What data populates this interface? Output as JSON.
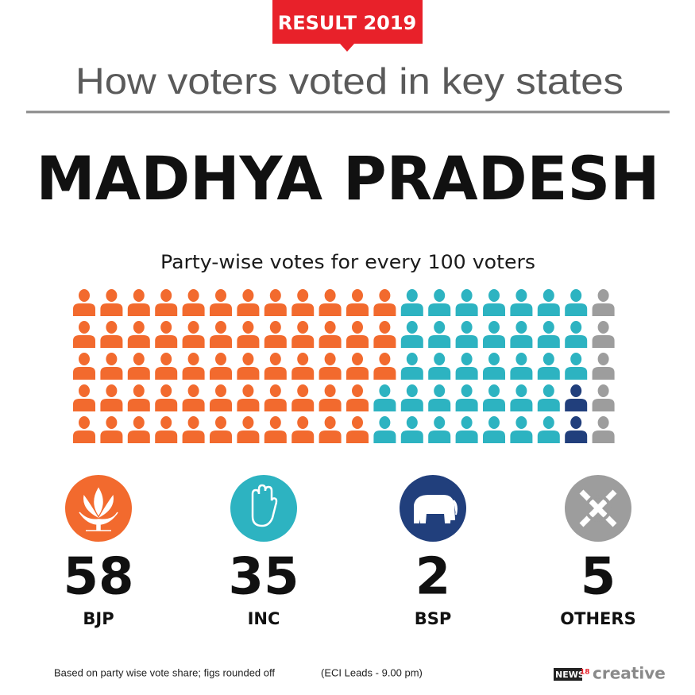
{
  "chart_data": {
    "type": "waffle",
    "badge": "RESULT 2019",
    "title": "How voters voted in key states",
    "state": "MADHYA PRADESH",
    "subtitle": "Party-wise votes for every 100 voters",
    "series": [
      {
        "name": "BJP",
        "color": "#f26a2e",
        "values": [
          58
        ]
      },
      {
        "name": "INC",
        "color": "#2db3c1",
        "values": [
          35
        ]
      },
      {
        "name": "BSP",
        "color": "#213f7c",
        "values": [
          2
        ]
      },
      {
        "name": "OTHERS",
        "color": "#9d9d9d",
        "values": [
          5
        ]
      }
    ],
    "note": "Based on party wise vote share; figs rounded off",
    "source": "(ECI Leads - 9.00 pm)",
    "logo": {
      "brand": "NEWS",
      "number": "18",
      "tag": "creative"
    }
  }
}
